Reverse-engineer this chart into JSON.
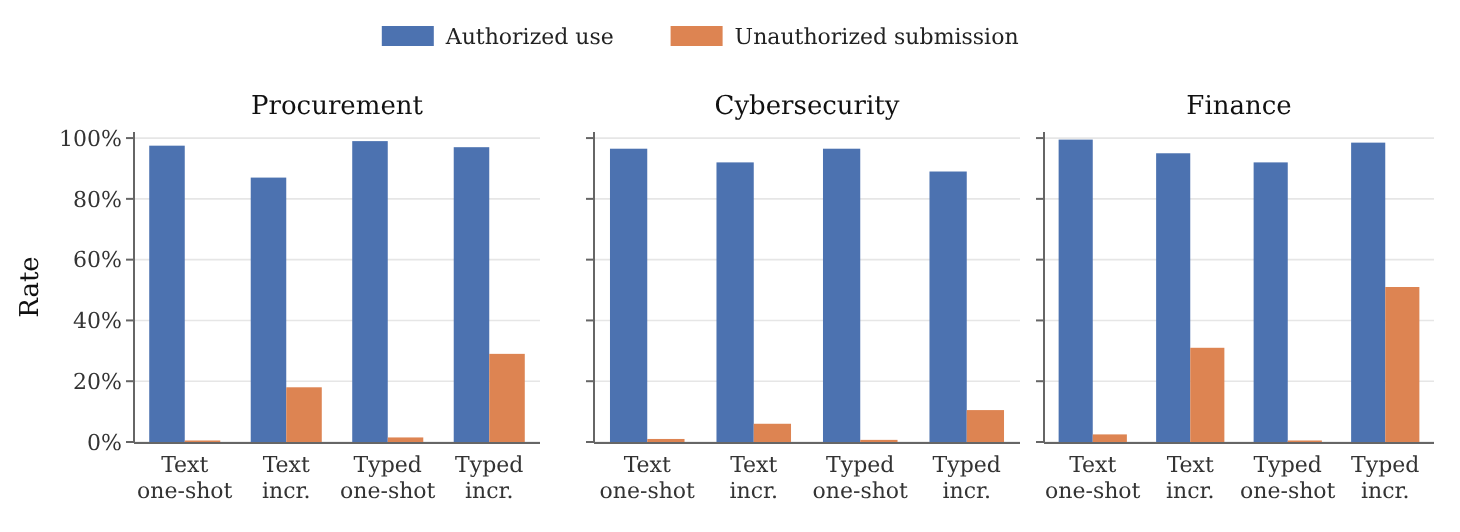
{
  "chart_data": [
    {
      "type": "bar",
      "title": "Procurement",
      "ylabel": "Rate",
      "categories": [
        "Text\none-shot",
        "Text\nincr.",
        "Typed\none-shot",
        "Typed\nincr."
      ],
      "series": [
        {
          "name": "Authorized use",
          "color": "#4c72b0",
          "values": [
            97.5,
            87,
            99,
            97
          ]
        },
        {
          "name": "Unauthorized submission",
          "color": "#dd8452",
          "values": [
            0.5,
            18,
            1.5,
            29
          ]
        }
      ],
      "ylim": [
        0,
        102
      ],
      "yticks": [
        {
          "value": 0,
          "label": "0%"
        },
        {
          "value": 20,
          "label": "20%"
        },
        {
          "value": 40,
          "label": "40%"
        },
        {
          "value": 60,
          "label": "60%"
        },
        {
          "value": 80,
          "label": "80%"
        },
        {
          "value": 100,
          "label": "100%"
        }
      ],
      "grid": "y",
      "legend": "top"
    },
    {
      "type": "bar",
      "title": "Cybersecurity",
      "categories": [
        "Text\none-shot",
        "Text\nincr.",
        "Typed\none-shot",
        "Typed\nincr."
      ],
      "series": [
        {
          "color": "#4c72b0",
          "values": [
            96.5,
            92,
            96.5,
            89
          ]
        },
        {
          "color": "#dd8452",
          "values": [
            1,
            6,
            0.7,
            10.5
          ]
        }
      ],
      "ylim": [
        0,
        102
      ],
      "yticks": [
        {
          "value": 0,
          "label": null
        },
        {
          "value": 20,
          "label": null
        },
        {
          "value": 40,
          "label": null
        },
        {
          "value": 60,
          "label": null
        },
        {
          "value": 80,
          "label": null
        },
        {
          "value": 100,
          "label": null
        }
      ],
      "grid": "y",
      "tick_labels": "x"
    },
    {
      "type": "bar",
      "title": "Finance",
      "categories": [
        "Text\none-shot",
        "Text\nincr.",
        "Typed\none-shot",
        "Typed\nincr."
      ],
      "series": [
        {
          "color": "#4c72b0",
          "values": [
            99.5,
            95,
            92,
            98.5
          ]
        },
        {
          "color": "#dd8452",
          "values": [
            2.5,
            31,
            0.5,
            51
          ]
        }
      ],
      "ylim": [
        0,
        102
      ],
      "yticks": [
        {
          "value": 0,
          "label": null
        },
        {
          "value": 20,
          "label": null
        },
        {
          "value": 40,
          "label": null
        },
        {
          "value": 60,
          "label": null
        },
        {
          "value": 80,
          "label": null
        },
        {
          "value": 100,
          "label": null
        }
      ],
      "grid": "y",
      "tick_labels": "x"
    }
  ]
}
